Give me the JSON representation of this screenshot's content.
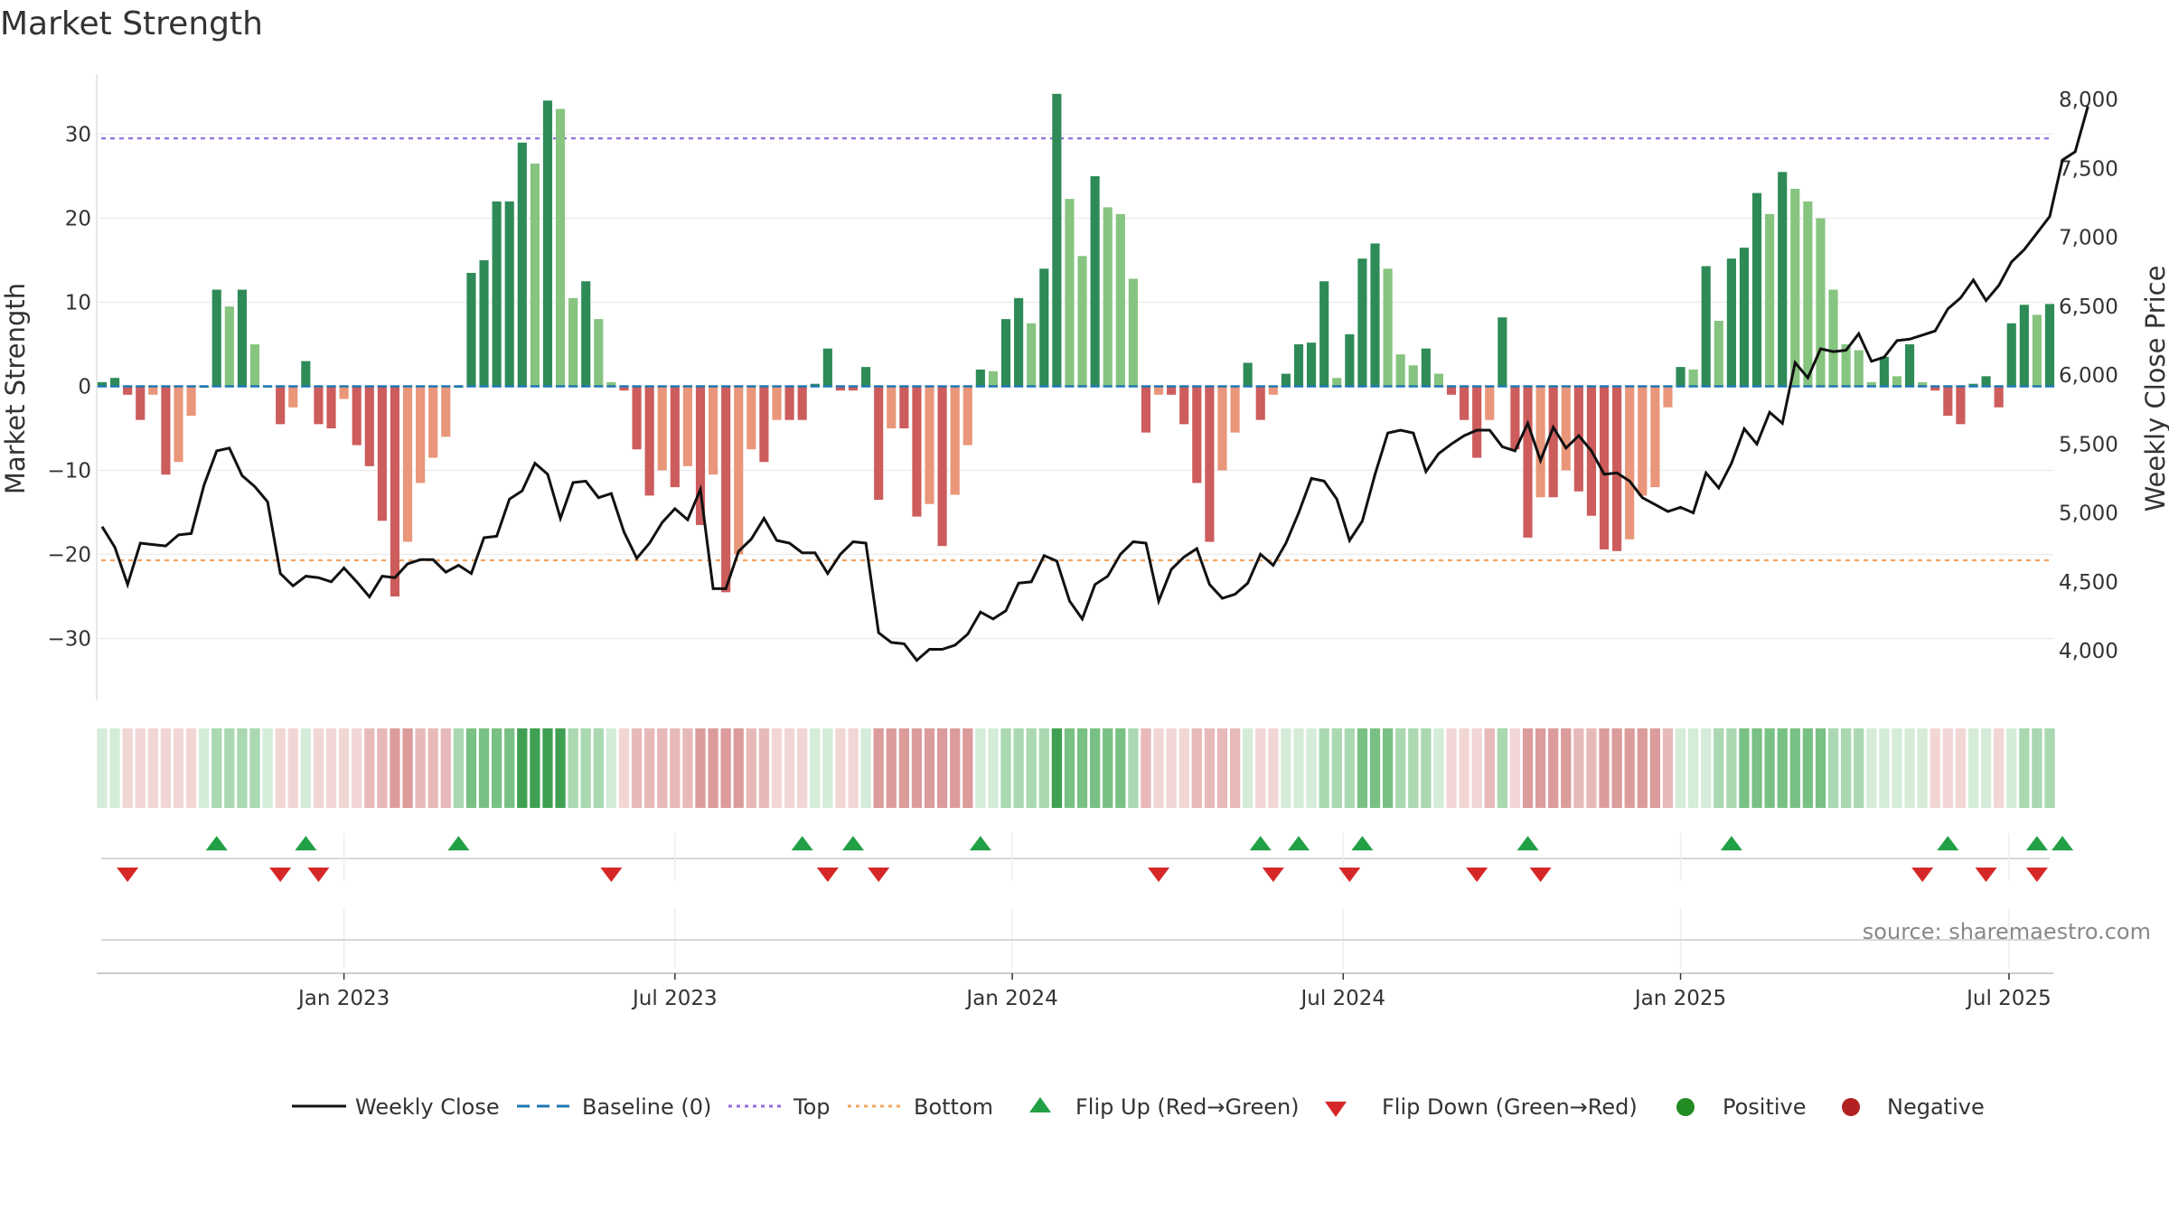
{
  "chart_data": {
    "type": "bar+line",
    "title": "Market Strength",
    "ylabel": "Market Strength",
    "y2label": "Weekly Close Price",
    "source": "source: sharemaestro.com",
    "ylim": [
      -37,
      37.5
    ],
    "y2lim": [
      3725,
      8100
    ],
    "yticks": [
      30,
      20,
      10,
      0,
      -10,
      -20,
      -30
    ],
    "yticklabels": [
      "30",
      "20",
      "10",
      "0",
      "−10",
      "−20",
      "−30"
    ],
    "y2ticks": [
      8000,
      7500,
      7000,
      6500,
      6000,
      5500,
      5000,
      4500,
      4000
    ],
    "y2ticklabels": [
      "8,000",
      "7,500",
      "7,000",
      "6,500",
      "6,000",
      "5,500",
      "5,000",
      "4,500",
      "4,000"
    ],
    "xticks": [
      {
        "label": "Jan 2023",
        "week": 19
      },
      {
        "label": "Jul 2023",
        "week": 45
      },
      {
        "label": "Jan 2024",
        "week": 71.5
      },
      {
        "label": "Jul 2024",
        "week": 97.5
      },
      {
        "label": "Jan 2025",
        "week": 124
      },
      {
        "label": "Jul 2025",
        "week": 149.8
      }
    ],
    "top_line": 29.5,
    "bottom_line": -20.7,
    "strength": [
      0.5,
      1,
      -1,
      -4,
      -1,
      -10.5,
      -9,
      -3.5,
      0,
      11.5,
      9.5,
      11.5,
      5,
      0,
      -4.5,
      -2.5,
      3,
      -4.5,
      -5,
      -1.5,
      -7,
      -9.5,
      -16,
      -25,
      -18.5,
      -11.5,
      -8.5,
      -6,
      0,
      13.5,
      15,
      22,
      22,
      29,
      26.5,
      34,
      33,
      10.5,
      12.5,
      8,
      0.5,
      -0.5,
      -7.5,
      -13,
      -10,
      -12,
      -9.5,
      -16.5,
      -10.5,
      -24.5,
      -20,
      -7.5,
      -9,
      -4,
      -4,
      -4,
      0.3,
      4.5,
      -0.5,
      -0.5,
      2.3,
      -13.5,
      -5,
      -5,
      -15.5,
      -14,
      -19,
      -12.9,
      -7,
      2,
      1.8,
      8,
      10.5,
      7.5,
      14,
      34.8,
      22.3,
      15.5,
      25,
      21.3,
      20.5,
      12.8,
      -5.5,
      -1,
      -1,
      -4.5,
      -11.5,
      -18.5,
      -10,
      -5.5,
      2.8,
      -4,
      -1,
      1.5,
      5,
      5.2,
      12.5,
      1,
      6.2,
      15.2,
      17,
      14,
      3.8,
      2.5,
      4.5,
      1.5,
      -1,
      -4,
      -8.5,
      -4,
      8.2,
      -7.5,
      -18,
      -13.2,
      -13.2,
      -10,
      -12.5,
      -15.4,
      -19.4,
      -19.6,
      -18.2,
      -13,
      -12,
      -2.5,
      2.3,
      2,
      14.3,
      7.8,
      15.2,
      16.5,
      23,
      20.5,
      25.5,
      23.5,
      22,
      20,
      11.5,
      5,
      4.3,
      0.5,
      3.5,
      1.2,
      5,
      0.5,
      -0.5,
      -3.5,
      -4.5,
      0.3,
      1.2,
      -2.5,
      7.5,
      9.7,
      8.5,
      9.8
    ],
    "close": [
      4900,
      4750,
      4480,
      4780,
      4770,
      4760,
      4840,
      4850,
      5200,
      5450,
      5470,
      5270,
      5190,
      5080,
      4560,
      4470,
      4540,
      4530,
      4500,
      4600,
      4500,
      4390,
      4540,
      4530,
      4630,
      4660,
      4660,
      4570,
      4620,
      4560,
      4820,
      4830,
      5100,
      5160,
      5360,
      5280,
      4960,
      5220,
      5230,
      5110,
      5140,
      4860,
      4670,
      4780,
      4930,
      5030,
      4950,
      5170,
      4450,
      4450,
      4720,
      4810,
      4960,
      4800,
      4780,
      4710,
      4710,
      4560,
      4700,
      4790,
      4780,
      4130,
      4060,
      4050,
      3930,
      4010,
      4010,
      4040,
      4120,
      4280,
      4230,
      4290,
      4490,
      4500,
      4690,
      4650,
      4360,
      4230,
      4480,
      4540,
      4700,
      4790,
      4780,
      4360,
      4590,
      4680,
      4740,
      4480,
      4380,
      4410,
      4490,
      4700,
      4620,
      4780,
      5000,
      5250,
      5230,
      5100,
      4800,
      4940,
      5280,
      5580,
      5600,
      5580,
      5300,
      5430,
      5500,
      5560,
      5600,
      5600,
      5480,
      5450,
      5650,
      5380,
      5620,
      5470,
      5560,
      5450,
      5280,
      5290,
      5230,
      5110,
      5060,
      5010,
      5040,
      5000,
      5290,
      5180,
      5360,
      5610,
      5500,
      5730,
      5650,
      6090,
      5980,
      6190,
      6170,
      6180,
      6300,
      6100,
      6130,
      6250,
      6260,
      6290,
      6320,
      6480,
      6560,
      6690,
      6540,
      6650,
      6820,
      6910,
      7030,
      7150,
      7560,
      7620,
      7950
    ],
    "shade_intensity": [
      1,
      1,
      1,
      1,
      1,
      1,
      1,
      1,
      1,
      2,
      2,
      2,
      2,
      1,
      1,
      1,
      1,
      1,
      1,
      1,
      1,
      2,
      2,
      3,
      3,
      2,
      2,
      2,
      2,
      3,
      3,
      3,
      3,
      4,
      4,
      4,
      4,
      2,
      2,
      2,
      1,
      1,
      2,
      2,
      2,
      2,
      2,
      3,
      3,
      3,
      3,
      2,
      2,
      1,
      1,
      1,
      1,
      1,
      1,
      1,
      1,
      3,
      3,
      3,
      3,
      3,
      3,
      3,
      3,
      1,
      1,
      2,
      2,
      2,
      2,
      4,
      3,
      3,
      3,
      3,
      3,
      2,
      2,
      1,
      1,
      1,
      2,
      2,
      2,
      2,
      1,
      1,
      1,
      1,
      1,
      1,
      2,
      2,
      2,
      3,
      3,
      3,
      2,
      2,
      2,
      1,
      1,
      1,
      1,
      2,
      2,
      1,
      3,
      3,
      3,
      3,
      2,
      2,
      3,
      3,
      3,
      3,
      3,
      2,
      1,
      1,
      1,
      2,
      2,
      3,
      3,
      3,
      3,
      3,
      3,
      3,
      2,
      2,
      2,
      1,
      1,
      1,
      1,
      1,
      1,
      1,
      1,
      1,
      1,
      1,
      1,
      2,
      2,
      2,
      2
    ],
    "flip_up_weeks": [
      9,
      16,
      28,
      55,
      59,
      69,
      91,
      94,
      99,
      112,
      128,
      145,
      152,
      154
    ],
    "flip_down_weeks": [
      2,
      14,
      17,
      40,
      57,
      61,
      83,
      92,
      98,
      108,
      113,
      143,
      148,
      152
    ],
    "legend": [
      "Weekly Close",
      "Baseline (0)",
      "Top",
      "Bottom",
      "Flip Up (Red→Green)",
      "Flip Down (Green→Red)",
      "Positive",
      "Negative"
    ],
    "colors": {
      "pos_dark": "#2e8b57",
      "pos_light": "#86c47f",
      "neg_dark": "#cd5c5c",
      "neg_light": "#e9967a",
      "top": "#9370db",
      "bottom": "#f4a460",
      "baseline": "#1f77b4",
      "close": "#111111",
      "flip_up": "#22a045",
      "flip_down": "#d62728",
      "positive_dot": "#228b22",
      "negative_dot": "#b22222"
    }
  }
}
